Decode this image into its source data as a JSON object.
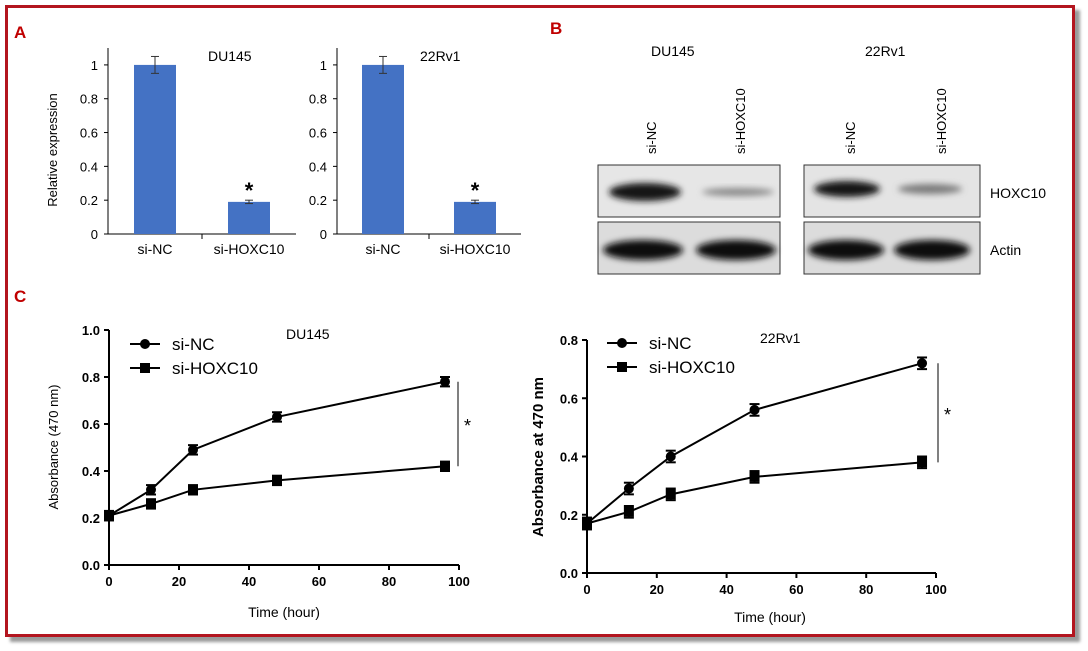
{
  "panels": {
    "A": "A",
    "B": "B",
    "C": "C"
  },
  "colors": {
    "frame": "#b3151f",
    "bar": "#4472c4",
    "line": "#000000"
  },
  "blot": {
    "cell_lines": [
      "DU145",
      "22Rv1"
    ],
    "lanes": [
      "si-NC",
      "si-HOXC10"
    ],
    "proteins": [
      "HOXC10",
      "Actin"
    ]
  },
  "chart_data": [
    {
      "type": "bar",
      "title": "DU145",
      "categories": [
        "si-NC",
        "si-HOXC10"
      ],
      "values": [
        1.0,
        0.19
      ],
      "errors": [
        0.05,
        0.01
      ],
      "significance": [
        "",
        "*"
      ],
      "ylabel": "Relative expression",
      "ylim": [
        0,
        1.1
      ],
      "yticks": [
        "0",
        "0.2",
        "0.4",
        "0.6",
        "0.8",
        "1"
      ]
    },
    {
      "type": "bar",
      "title": "22Rv1",
      "categories": [
        "si-NC",
        "si-HOXC10"
      ],
      "values": [
        1.0,
        0.19
      ],
      "errors": [
        0.05,
        0.01
      ],
      "significance": [
        "",
        "*"
      ],
      "ylabel": "",
      "ylim": [
        0,
        1.1
      ],
      "yticks": [
        "0",
        "0.2",
        "0.4",
        "0.6",
        "0.8",
        "1"
      ]
    },
    {
      "type": "line",
      "title": "DU145",
      "x": [
        0,
        12,
        24,
        48,
        96
      ],
      "series": [
        {
          "name": "si-NC",
          "marker": "circle",
          "values": [
            0.21,
            0.32,
            0.49,
            0.63,
            0.78
          ],
          "errors": [
            0.02,
            0.02,
            0.02,
            0.02,
            0.02
          ]
        },
        {
          "name": "si-HOXC10",
          "marker": "square",
          "values": [
            0.21,
            0.26,
            0.32,
            0.36,
            0.42
          ],
          "errors": [
            0.02,
            0.02,
            0.02,
            0.02,
            0.02
          ]
        }
      ],
      "significance": "*",
      "xlabel": "Time (hour)",
      "ylabel": "Absorbance (470 nm)",
      "xlim": [
        0,
        100
      ],
      "ylim": [
        0,
        1.0
      ],
      "xticks": [
        "0",
        "20",
        "40",
        "60",
        "80",
        "100"
      ],
      "yticks": [
        "0.0",
        "0.2",
        "0.4",
        "0.6",
        "0.8",
        "1.0"
      ],
      "legend": "top-left"
    },
    {
      "type": "line",
      "title": "22Rv1",
      "x": [
        0,
        12,
        24,
        48,
        96
      ],
      "series": [
        {
          "name": "si-NC",
          "marker": "circle",
          "values": [
            0.17,
            0.29,
            0.4,
            0.56,
            0.72
          ],
          "errors": [
            0.02,
            0.02,
            0.02,
            0.02,
            0.02
          ]
        },
        {
          "name": "si-HOXC10",
          "marker": "square",
          "values": [
            0.17,
            0.21,
            0.27,
            0.33,
            0.38
          ],
          "errors": [
            0.02,
            0.02,
            0.02,
            0.02,
            0.02
          ]
        }
      ],
      "significance": "*",
      "xlabel": "Time (hour)",
      "ylabel": "Absorbance at 470 nm",
      "xlim": [
        0,
        100
      ],
      "ylim": [
        0,
        0.8
      ],
      "xticks": [
        "0",
        "20",
        "40",
        "60",
        "80",
        "100"
      ],
      "yticks": [
        "0.0",
        "0.2",
        "0.4",
        "0.6",
        "0.8"
      ],
      "legend": "top-left"
    }
  ]
}
